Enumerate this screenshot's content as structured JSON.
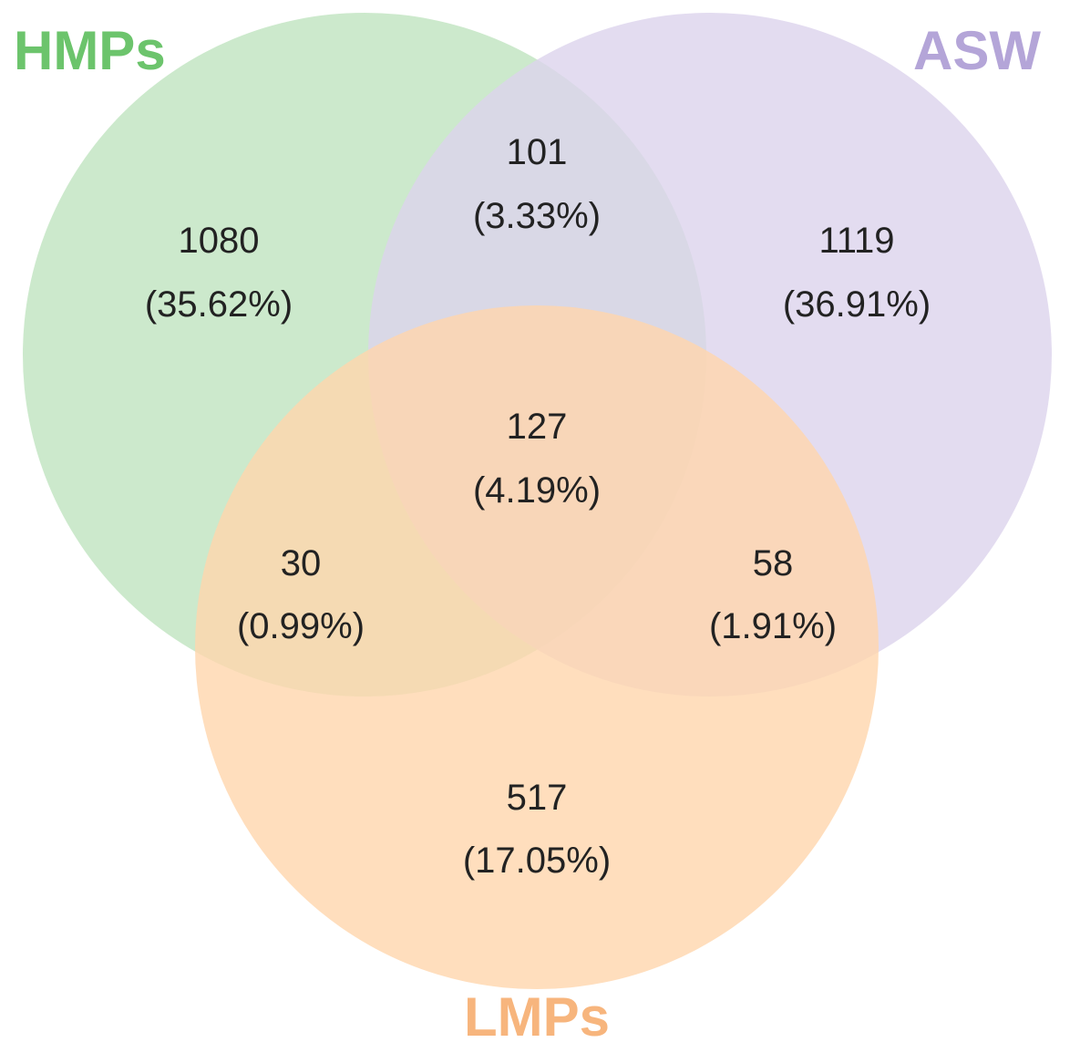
{
  "sets": [
    {
      "key": "hmps",
      "label": "HMPs",
      "fill": "#bfe3bf",
      "label_color": "#6cc46c"
    },
    {
      "key": "asw",
      "label": "ASW",
      "fill": "#dcd3ec",
      "label_color": "#b4a5d8"
    },
    {
      "key": "lmps",
      "label": "LMPs",
      "fill": "#ffd6ad",
      "label_color": "#f7b57d"
    }
  ],
  "regions": [
    {
      "key": "hmps-only",
      "sets": [
        "HMPs"
      ],
      "count": "1080",
      "percent": "(35.62%)"
    },
    {
      "key": "asw-only",
      "sets": [
        "ASW"
      ],
      "count": "1119",
      "percent": "(36.91%)"
    },
    {
      "key": "lmps-only",
      "sets": [
        "LMPs"
      ],
      "count": "517",
      "percent": "(17.05%)"
    },
    {
      "key": "hmps-asw",
      "sets": [
        "HMPs",
        "ASW"
      ],
      "count": "101",
      "percent": "(3.33%)"
    },
    {
      "key": "hmps-lmps",
      "sets": [
        "HMPs",
        "LMPs"
      ],
      "count": "30",
      "percent": "(0.99%)"
    },
    {
      "key": "asw-lmps",
      "sets": [
        "ASW",
        "LMPs"
      ],
      "count": "58",
      "percent": "(1.91%)"
    },
    {
      "key": "all",
      "sets": [
        "HMPs",
        "ASW",
        "LMPs"
      ],
      "count": "127",
      "percent": "(4.19%)"
    }
  ]
}
